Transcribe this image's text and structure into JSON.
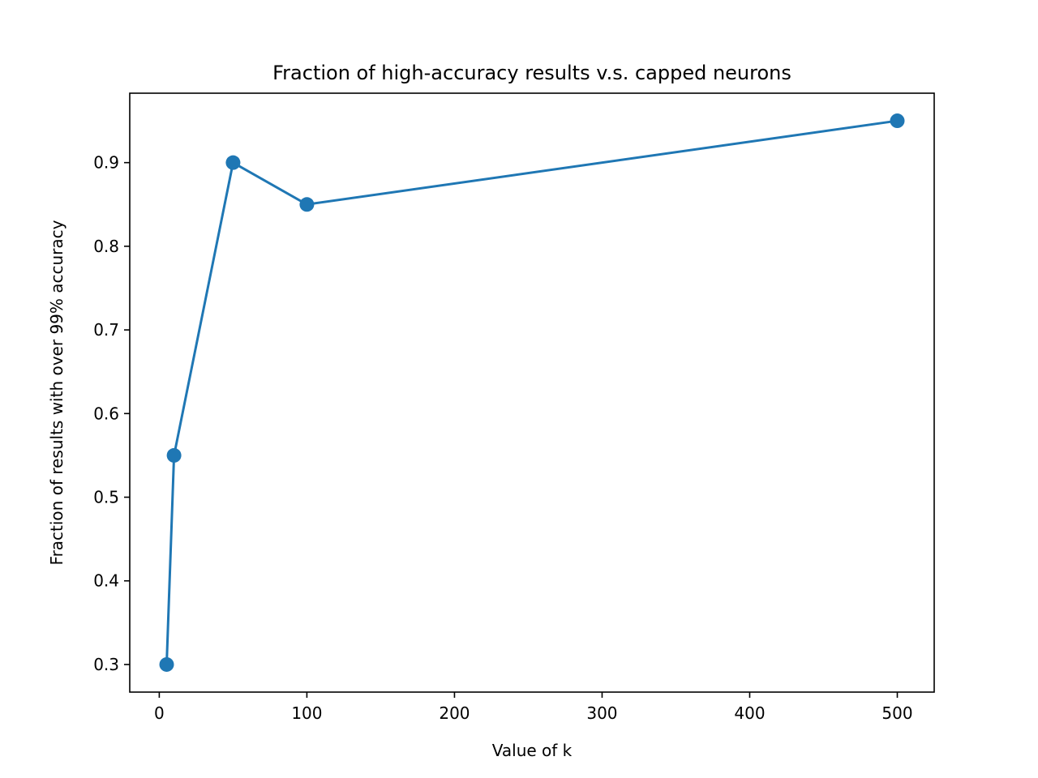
{
  "chart_data": {
    "type": "line",
    "title": "Fraction of high-accuracy results v.s. capped neurons",
    "xlabel": "Value of k",
    "ylabel": "Fraction of results with over 99% accuracy",
    "xlim": [
      -20,
      525
    ],
    "ylim": [
      0.267,
      0.983
    ],
    "xticks": [
      0,
      100,
      200,
      300,
      400,
      500
    ],
    "xtick_labels": [
      "0",
      "100",
      "200",
      "300",
      "400",
      "500"
    ],
    "yticks": [
      0.3,
      0.4,
      0.5,
      0.6,
      0.7,
      0.8,
      0.9
    ],
    "ytick_labels": [
      "0.3",
      "0.4",
      "0.5",
      "0.6",
      "0.7",
      "0.8",
      "0.9"
    ],
    "grid": false,
    "legend": "none",
    "series": [
      {
        "x": [
          5,
          10,
          50,
          100,
          500
        ],
        "y": [
          0.3,
          0.55,
          0.9,
          0.85,
          0.95
        ],
        "color": "#1f77b4",
        "marker": "circle"
      }
    ]
  }
}
